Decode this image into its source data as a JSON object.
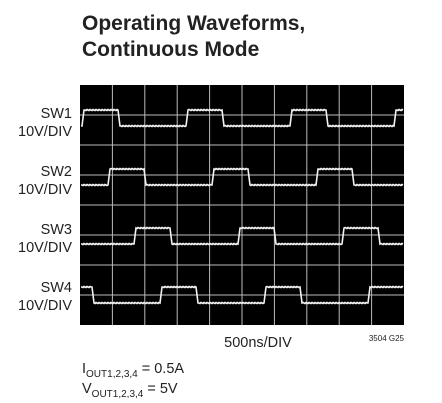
{
  "title_lines": [
    "Operating Waveforms,",
    "Continuous Mode"
  ],
  "channels": [
    {
      "name": "SW1",
      "scale": "10V/DIV"
    },
    {
      "name": "SW2",
      "scale": "10V/DIV"
    },
    {
      "name": "SW3",
      "scale": "10V/DIV"
    },
    {
      "name": "SW4",
      "scale": "10V/DIV"
    }
  ],
  "time_scale": "500ns/DIV",
  "figure_id": "3504 G25",
  "notes": [
    {
      "symbol": "I",
      "subscript": "OUT1,2,3,4",
      "text": "= 0.5A"
    },
    {
      "symbol": "V",
      "subscript": "OUT1,2,3,4",
      "text": "= 5V"
    }
  ]
}
